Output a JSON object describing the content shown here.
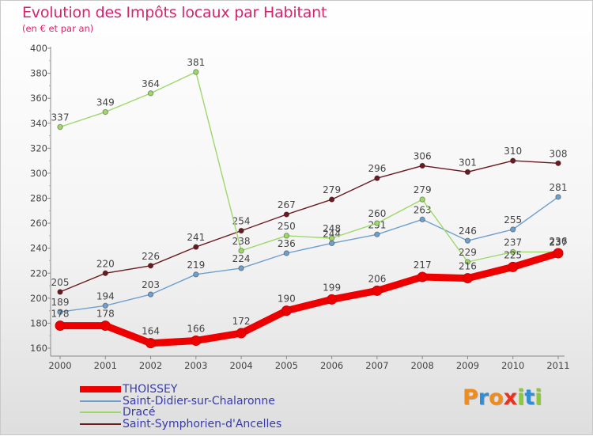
{
  "title": "Evolution des Impôts locaux par Habitant",
  "subtitle": "(en € et par an)",
  "brand": {
    "letters": [
      "P",
      "r",
      "o",
      "x",
      "i",
      "t",
      "i"
    ],
    "colors": [
      "#f08c1e",
      "#2e8ed8",
      "#f08c1e",
      "#e6321e",
      "#8cc83c",
      "#2e8ed8",
      "#8cc83c"
    ]
  },
  "chart_data": {
    "type": "line",
    "title": "Evolution des Impôts locaux par Habitant",
    "subtitle": "(en € et par an)",
    "xlabel": "",
    "ylabel": "",
    "x": [
      "2000",
      "2001",
      "2002",
      "2003",
      "2004",
      "2005",
      "2006",
      "2007",
      "2008",
      "2009",
      "2010",
      "2011"
    ],
    "ylim": [
      160,
      400
    ],
    "yticks": [
      "160",
      "180",
      "200",
      "220",
      "240",
      "260",
      "280",
      "300",
      "320",
      "340",
      "360",
      "380",
      "400"
    ],
    "grid": false,
    "legend": "bottom-left",
    "series": [
      {
        "name": "Saint-Symphorien-d'Ancelles",
        "color": "#6b1a1f",
        "values": [
          205,
          220,
          226,
          241,
          254,
          267,
          279,
          296,
          306,
          301,
          310,
          308
        ],
        "labels": [
          "205",
          "220",
          "226",
          "241",
          "254",
          "267",
          "279",
          "296",
          "306",
          "301",
          "310",
          "308"
        ]
      },
      {
        "name": "Saint-Didier-sur-Chalaronne",
        "color": "#6fa0cc",
        "values": [
          189,
          194,
          203,
          219,
          224,
          236,
          244,
          251,
          263,
          246,
          255,
          281
        ],
        "labels": [
          "189",
          "194",
          "203",
          "219",
          "224",
          "236",
          "244",
          "251",
          "263",
          "246",
          "255",
          "281"
        ]
      },
      {
        "name": "Dracé",
        "color": "#9ed86a",
        "values": [
          337,
          349,
          364,
          381,
          238,
          250,
          248,
          260,
          279,
          229,
          237,
          237
        ],
        "labels": [
          "337",
          "349",
          "364",
          "381",
          "238",
          "250",
          "248",
          "260",
          "279",
          "229",
          "237",
          "237"
        ]
      },
      {
        "name": "THOISSEY",
        "color": "#ee0000",
        "values": [
          178,
          178,
          164,
          166,
          172,
          190,
          199,
          206,
          217,
          216,
          225,
          236
        ],
        "labels": [
          "178",
          "178",
          "164",
          "166",
          "172",
          "190",
          "199",
          "206",
          "217",
          "216",
          "225",
          "236"
        ]
      }
    ],
    "legend_order": [
      "THOISSEY",
      "Saint-Didier-sur-Chalaronne",
      "Dracé",
      "Saint-Symphorien-d'Ancelles"
    ]
  }
}
